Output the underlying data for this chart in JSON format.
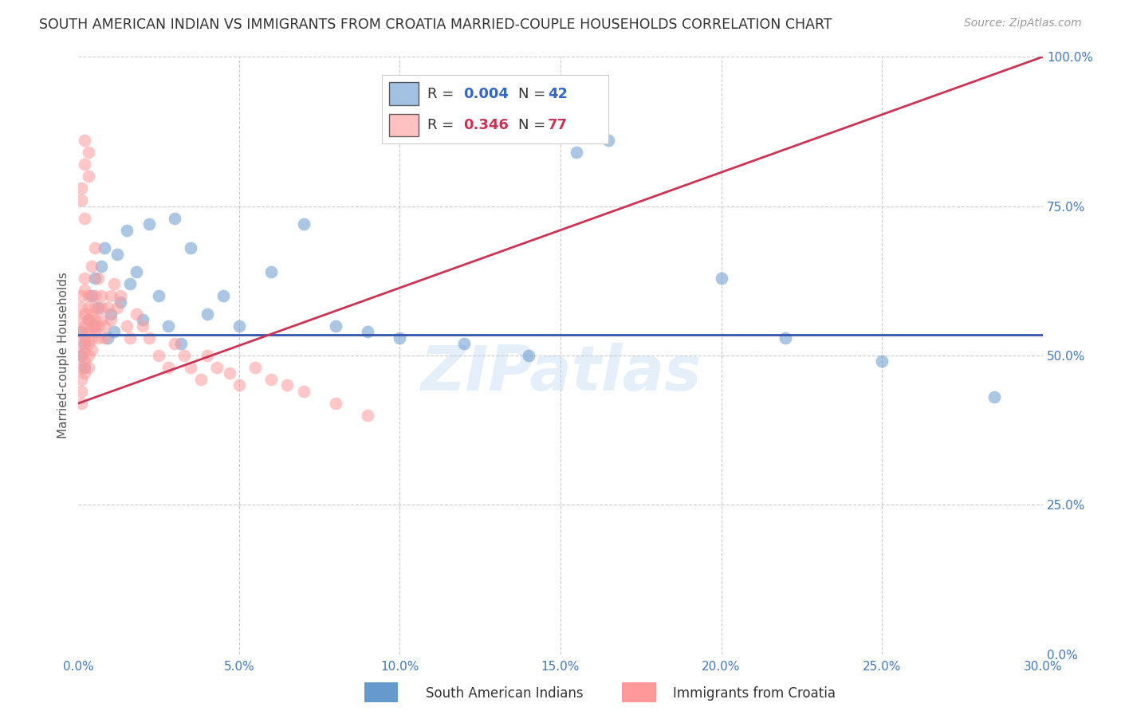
{
  "title": "SOUTH AMERICAN INDIAN VS IMMIGRANTS FROM CROATIA MARRIED-COUPLE HOUSEHOLDS CORRELATION CHART",
  "source": "Source: ZipAtlas.com",
  "ylabel_label": "Married-couple Households",
  "xlabel_label_blue": "South American Indians",
  "xlabel_label_pink": "Immigrants from Croatia",
  "xlim": [
    0.0,
    0.3
  ],
  "ylim": [
    0.0,
    1.0
  ],
  "blue_color": "#6699CC",
  "pink_color": "#FF9999",
  "blue_line_color": "#3355AA",
  "pink_line_color": "#CC3355",
  "watermark": "ZIPatlas",
  "legend_blue_R": "0.004",
  "legend_blue_N": "42",
  "legend_pink_R": "0.346",
  "legend_pink_N": "77",
  "blue_scatter_x": [
    0.001,
    0.001,
    0.002,
    0.002,
    0.003,
    0.004,
    0.005,
    0.005,
    0.006,
    0.007,
    0.008,
    0.009,
    0.01,
    0.011,
    0.012,
    0.013,
    0.015,
    0.016,
    0.018,
    0.02,
    0.022,
    0.025,
    0.028,
    0.03,
    0.032,
    0.035,
    0.04,
    0.045,
    0.05,
    0.06,
    0.07,
    0.08,
    0.09,
    0.1,
    0.12,
    0.14,
    0.155,
    0.165,
    0.2,
    0.22,
    0.25,
    0.285
  ],
  "blue_scatter_y": [
    0.54,
    0.5,
    0.52,
    0.48,
    0.56,
    0.6,
    0.63,
    0.55,
    0.58,
    0.65,
    0.68,
    0.53,
    0.57,
    0.54,
    0.67,
    0.59,
    0.71,
    0.62,
    0.64,
    0.56,
    0.72,
    0.6,
    0.55,
    0.73,
    0.52,
    0.68,
    0.57,
    0.6,
    0.55,
    0.64,
    0.72,
    0.55,
    0.54,
    0.53,
    0.52,
    0.5,
    0.84,
    0.86,
    0.63,
    0.53,
    0.49,
    0.43
  ],
  "pink_scatter_x": [
    0.001,
    0.001,
    0.001,
    0.001,
    0.001,
    0.001,
    0.001,
    0.001,
    0.001,
    0.001,
    0.002,
    0.002,
    0.002,
    0.002,
    0.002,
    0.002,
    0.002,
    0.002,
    0.003,
    0.003,
    0.003,
    0.003,
    0.003,
    0.003,
    0.003,
    0.004,
    0.004,
    0.004,
    0.004,
    0.004,
    0.005,
    0.005,
    0.005,
    0.005,
    0.005,
    0.006,
    0.006,
    0.006,
    0.007,
    0.007,
    0.007,
    0.008,
    0.008,
    0.009,
    0.01,
    0.01,
    0.011,
    0.012,
    0.013,
    0.015,
    0.016,
    0.018,
    0.02,
    0.022,
    0.025,
    0.028,
    0.03,
    0.033,
    0.035,
    0.038,
    0.04,
    0.043,
    0.047,
    0.05,
    0.055,
    0.06,
    0.065,
    0.07,
    0.08,
    0.09,
    0.002,
    0.002,
    0.003,
    0.003,
    0.001,
    0.001,
    0.002
  ],
  "pink_scatter_y": [
    0.54,
    0.52,
    0.5,
    0.56,
    0.48,
    0.58,
    0.6,
    0.46,
    0.44,
    0.42,
    0.55,
    0.53,
    0.51,
    0.57,
    0.49,
    0.47,
    0.61,
    0.63,
    0.56,
    0.54,
    0.52,
    0.58,
    0.6,
    0.5,
    0.48,
    0.55,
    0.57,
    0.53,
    0.51,
    0.65,
    0.58,
    0.56,
    0.54,
    0.6,
    0.68,
    0.55,
    0.53,
    0.63,
    0.58,
    0.56,
    0.6,
    0.55,
    0.53,
    0.58,
    0.56,
    0.6,
    0.62,
    0.58,
    0.6,
    0.55,
    0.53,
    0.57,
    0.55,
    0.53,
    0.5,
    0.48,
    0.52,
    0.5,
    0.48,
    0.46,
    0.5,
    0.48,
    0.47,
    0.45,
    0.48,
    0.46,
    0.45,
    0.44,
    0.42,
    0.4,
    0.82,
    0.86,
    0.8,
    0.84,
    0.76,
    0.78,
    0.73
  ],
  "blue_line_x": [
    0.0,
    0.3
  ],
  "blue_line_y": [
    0.535,
    0.535
  ],
  "pink_line_x": [
    0.0,
    0.3
  ],
  "pink_line_y": [
    0.42,
    1.0
  ],
  "background_color": "#FFFFFF",
  "grid_color": "#CCCCCC",
  "x_ticks": [
    0.0,
    0.05,
    0.1,
    0.15,
    0.2,
    0.25,
    0.3
  ],
  "y_ticks": [
    0.0,
    0.25,
    0.5,
    0.75,
    1.0
  ]
}
